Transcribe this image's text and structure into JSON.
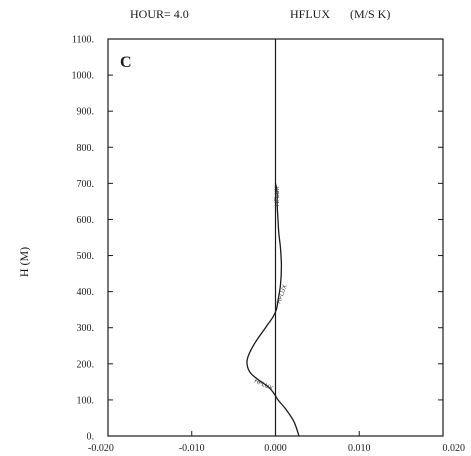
{
  "header": {
    "hour_label": "HOUR= 4.0",
    "variable_label": "HFLUX",
    "units_label": "(M/S K)"
  },
  "chart_data": {
    "type": "line",
    "panel_letter": "C",
    "ylabel": "H (M)",
    "xlabel": "",
    "xlim": [
      -0.02,
      0.02
    ],
    "ylim": [
      0,
      1100
    ],
    "x_ticks": [
      -0.02,
      -0.01,
      0.0,
      0.01,
      0.02
    ],
    "x_tick_labels": [
      "-0.020",
      "-0.010",
      "0.000",
      "0.010",
      "0.020"
    ],
    "y_ticks": [
      0,
      100,
      200,
      300,
      400,
      500,
      600,
      700,
      800,
      900,
      1000,
      1100
    ],
    "y_tick_labels": [
      "0.",
      "100.",
      "200.",
      "300.",
      "400.",
      "500.",
      "600.",
      "700.",
      "800.",
      "900.",
      "1000.",
      "1100."
    ],
    "zero_line_x": 0.0,
    "grid": false,
    "curve_label": "HFLUX",
    "series": [
      {
        "x": [
          0.0028,
          0.0022,
          0.0012,
          0.0003,
          -0.0001,
          -0.0008,
          -0.002,
          -0.003,
          -0.0034,
          -0.0032,
          -0.0024,
          -0.0012,
          -0.0003,
          0.0001,
          0.0003,
          0.0006,
          0.0007,
          0.0006,
          0.0004,
          0.0003,
          0.0002,
          0.0002,
          0.0001,
          0.0
        ],
        "y": [
          0,
          40,
          75,
          100,
          115,
          135,
          155,
          175,
          200,
          225,
          260,
          300,
          330,
          350,
          375,
          420,
          470,
          520,
          560,
          600,
          640,
          670,
          690,
          700
        ]
      }
    ]
  }
}
